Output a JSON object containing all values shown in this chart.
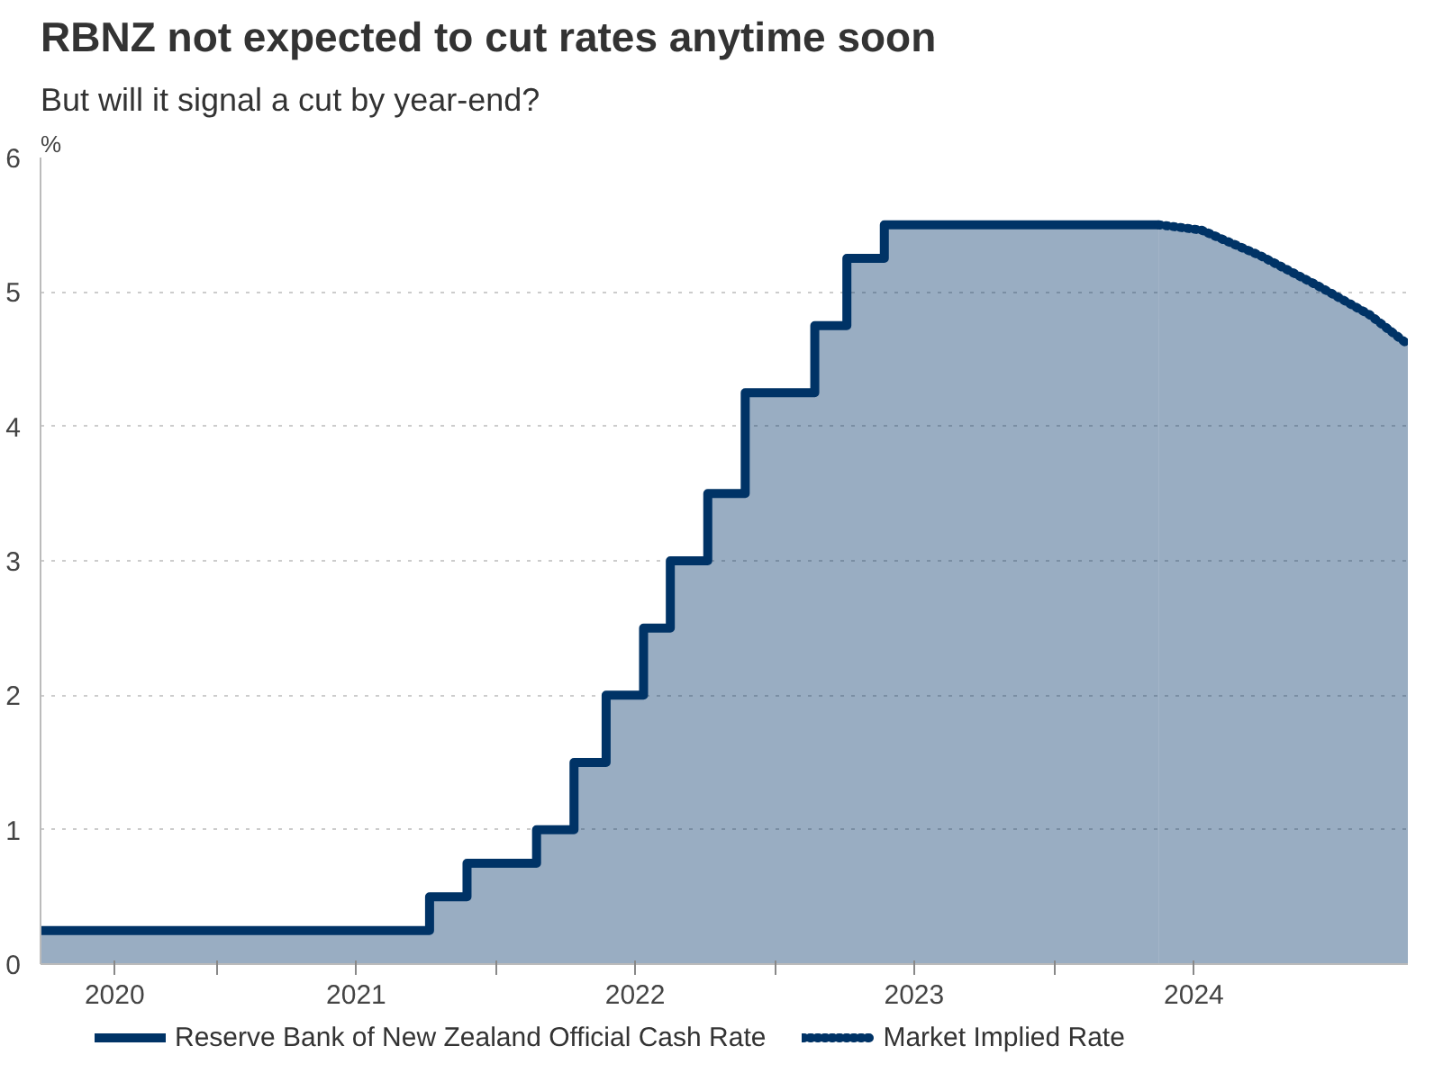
{
  "chart_data": {
    "type": "area",
    "title": "RBNZ not expected to cut rates anytime soon",
    "subtitle": "But will it signal a cut by year-end?",
    "ylabel": "%",
    "xlim": [
      "2020-05-15",
      "2025-04-08"
    ],
    "ylim": [
      0,
      6
    ],
    "yticks": [
      0,
      1,
      2,
      3,
      4,
      5,
      6
    ],
    "xticks": [
      {
        "value": "2020-08-20",
        "label": "2020"
      },
      {
        "value": "2021-01-01",
        "label": null
      },
      {
        "value": "2021-07-02",
        "label": "2021"
      },
      {
        "value": "2022-01-01",
        "label": null
      },
      {
        "value": "2022-07-02",
        "label": "2022"
      },
      {
        "value": "2023-01-01",
        "label": null
      },
      {
        "value": "2023-07-02",
        "label": "2023"
      },
      {
        "value": "2024-01-01",
        "label": null
      },
      {
        "value": "2024-07-02",
        "label": "2024"
      }
    ],
    "grid": "y",
    "legend": "bottom",
    "series": [
      {
        "name": "Reserve Bank of New Zealand Official Cash Rate",
        "color": "#003366",
        "line_style": "solid",
        "x": [
          "2020-05-15",
          "2021-10-06",
          "2021-10-06",
          "2021-11-24",
          "2021-11-24",
          "2022-02-23",
          "2022-02-23",
          "2022-04-13",
          "2022-04-13",
          "2022-05-25",
          "2022-05-25",
          "2022-07-13",
          "2022-07-13",
          "2022-08-17",
          "2022-08-17",
          "2022-10-05",
          "2022-10-05",
          "2022-11-23",
          "2022-11-23",
          "2023-02-22",
          "2023-02-22",
          "2023-04-05",
          "2023-04-05",
          "2023-05-24",
          "2023-05-24",
          "2024-05-17"
        ],
        "values": [
          0.25,
          0.25,
          0.5,
          0.5,
          0.75,
          0.75,
          1.0,
          1.0,
          1.5,
          1.5,
          2.0,
          2.0,
          2.5,
          2.5,
          3.0,
          3.0,
          3.5,
          3.5,
          4.25,
          4.25,
          4.75,
          4.75,
          5.25,
          5.25,
          5.5,
          5.5
        ]
      },
      {
        "name": "Market Implied Rate",
        "color": "#003366",
        "line_style": "dotted",
        "x": [
          "2024-05-17",
          "2024-07-12",
          "2024-09-27",
          "2024-12-10",
          "2025-02-17",
          "2025-04-08"
        ],
        "values": [
          5.5,
          5.46,
          5.27,
          5.05,
          4.83,
          4.61
        ]
      }
    ]
  }
}
